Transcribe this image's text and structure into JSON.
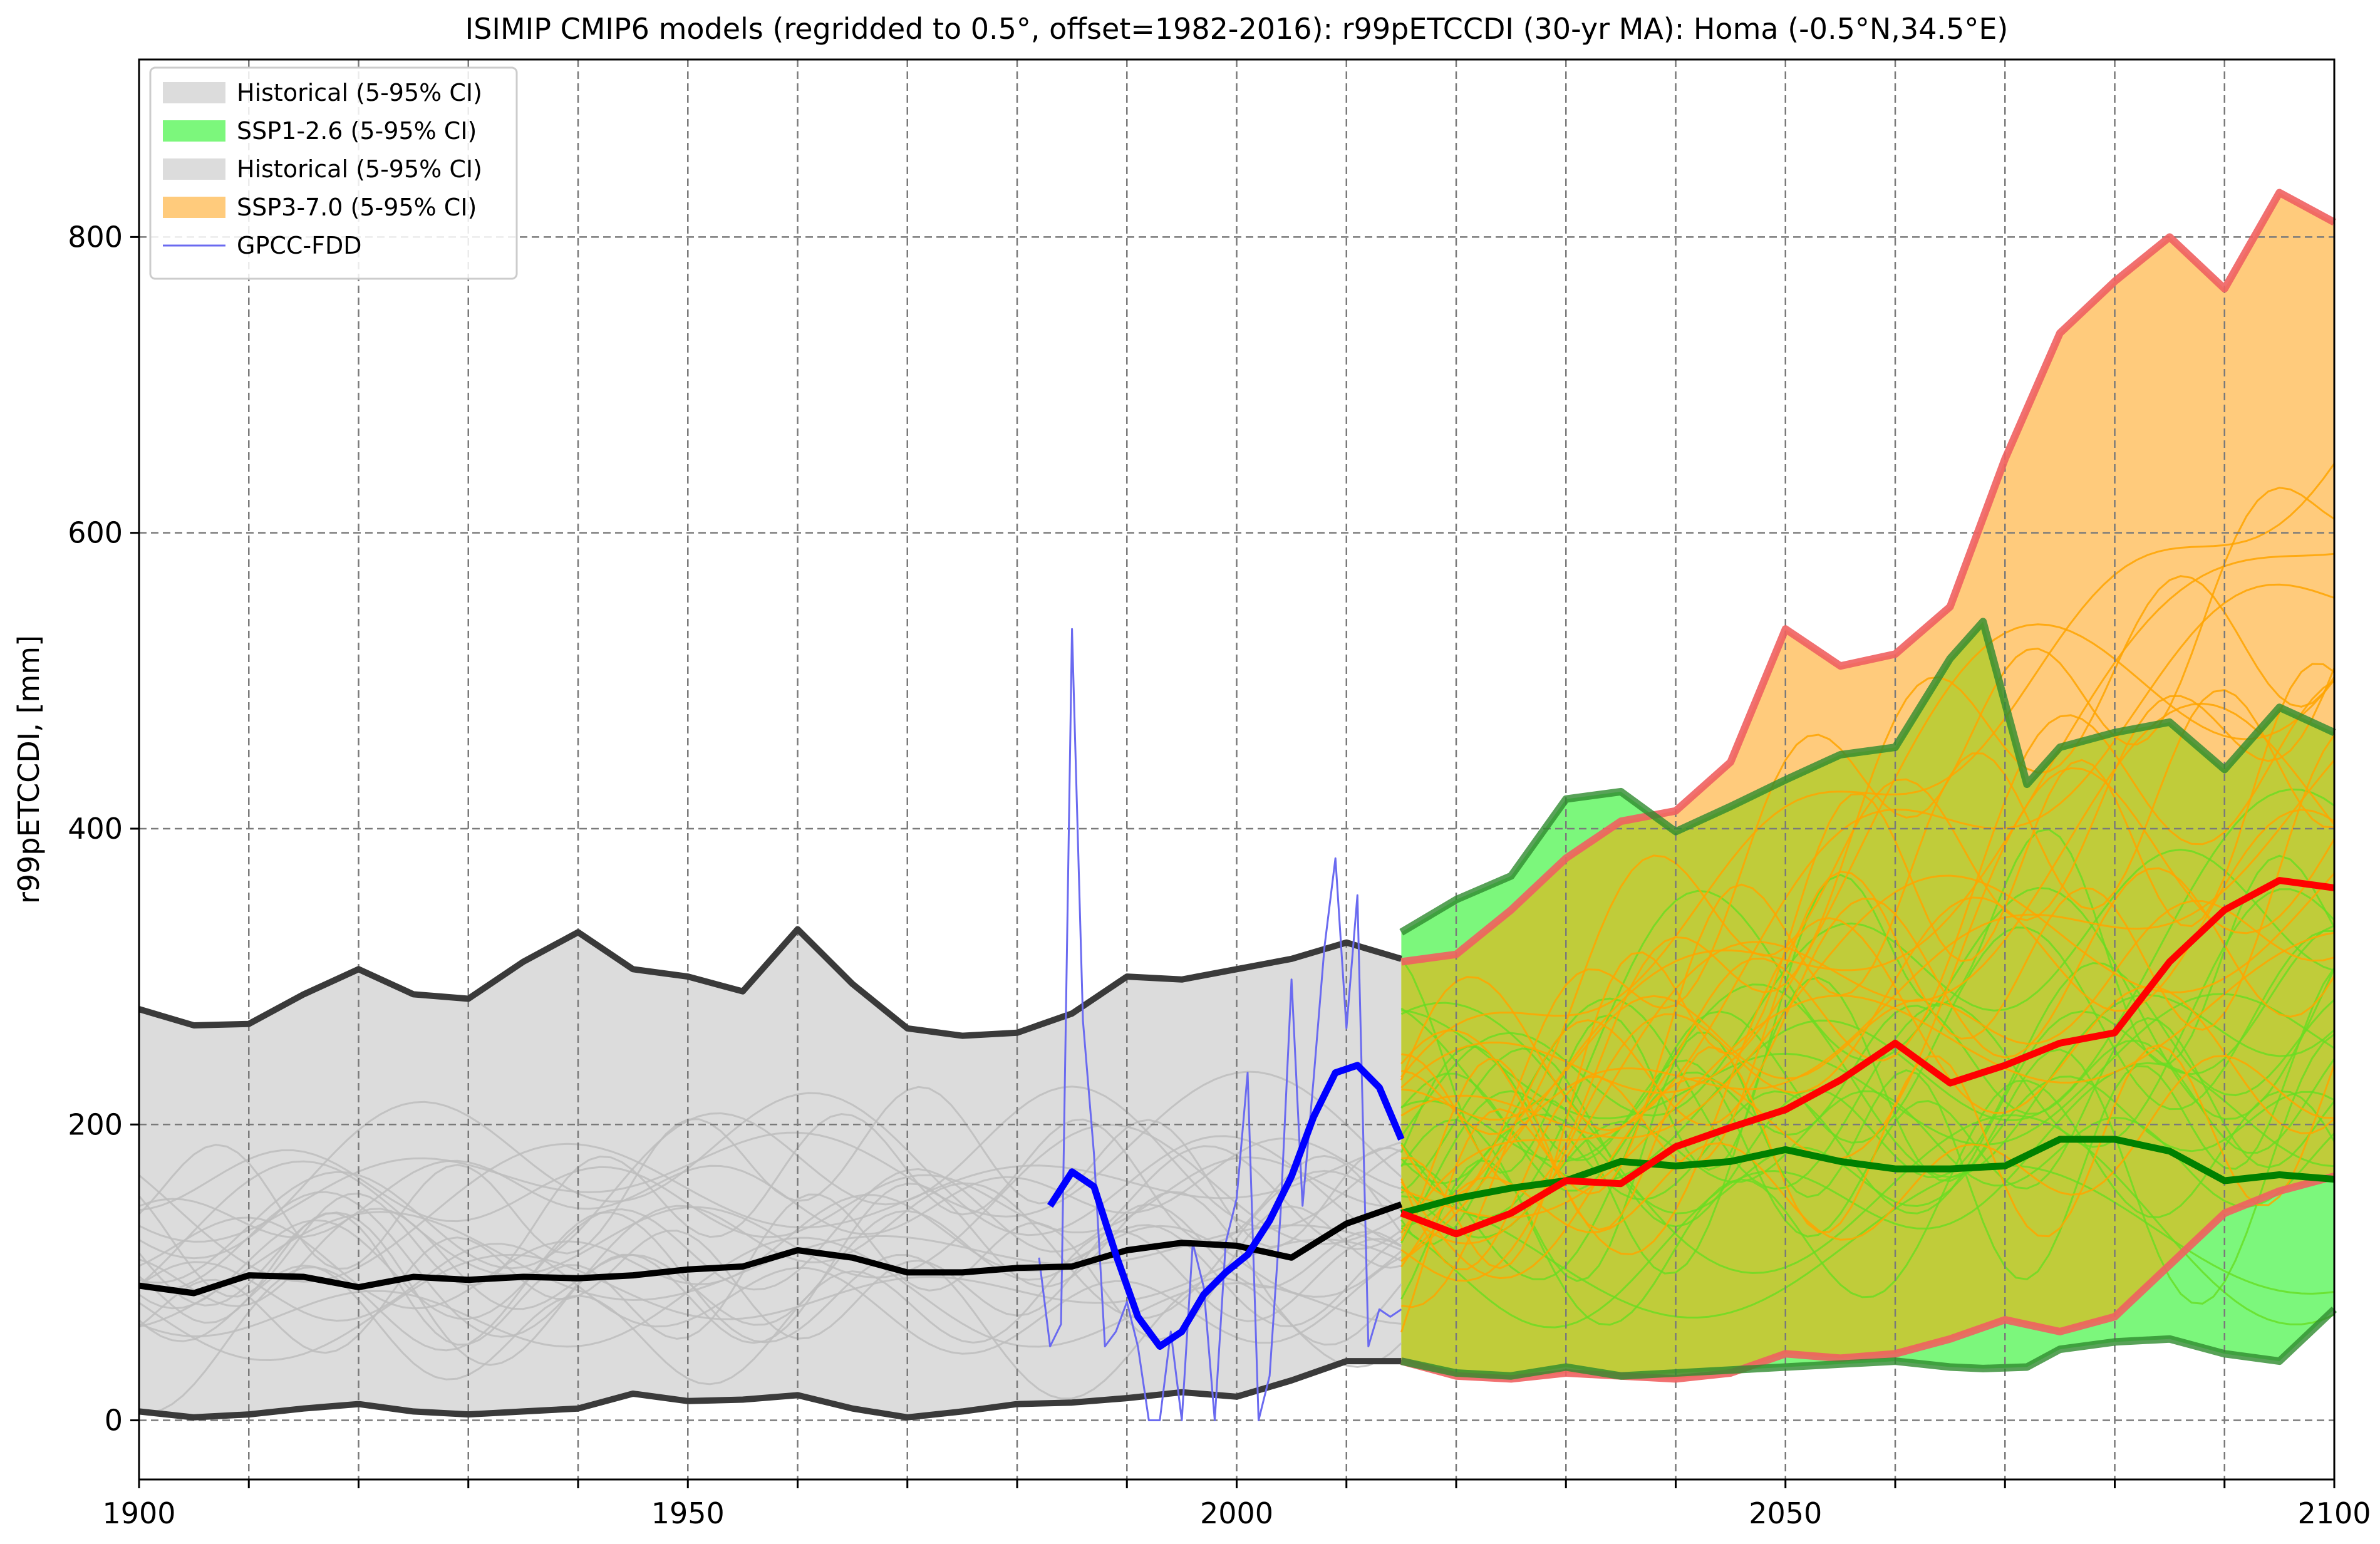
{
  "chart_data": {
    "type": "line",
    "title": "ISIMIP CMIP6 models (regridded to 0.5°, offset=1982-2016): r99pETCCDI (30-yr MA): Homa (-0.5°N,34.5°E)",
    "xlabel": "",
    "ylabel": "r99pETCCDI, [mm]",
    "xlim": [
      1900,
      2100
    ],
    "ylim": [
      -40,
      920
    ],
    "xticks": [
      1900,
      1950,
      2000,
      2050,
      2100
    ],
    "yticks": [
      0,
      200,
      400,
      600,
      800
    ],
    "grid": true,
    "legend_position": "top-left",
    "legend": [
      {
        "label": "Historical (5-95% CI)",
        "kind": "patch",
        "color": "#dcdcdc"
      },
      {
        "label": "SSP1-2.6 (5-95% CI)",
        "kind": "patch",
        "color": "#7cf77c"
      },
      {
        "label": "Historical (5-95% CI)",
        "kind": "patch",
        "color": "#dcdcdc"
      },
      {
        "label": "SSP3-7.0 (5-95% CI)",
        "kind": "patch",
        "color": "#ffcb7c"
      },
      {
        "label": "GPCC-FDD",
        "kind": "line",
        "color": "#6a6af0"
      }
    ],
    "colors": {
      "historical_band": "#dcdcdc",
      "historical_edge": "#3a3a3a",
      "historical_median": "#000000",
      "historical_members": "#bdbdbd",
      "ssp126_band": "#7cf77c",
      "ssp126_edge": "#2e8b2e",
      "ssp126_median": "#008000",
      "ssp126_members": "#66dd22",
      "ssp370_band": "#ffcb7c",
      "ssp370_edge": "#f06060",
      "ssp370_median": "#ff0000",
      "ssp370_members": "#ffa500",
      "overlap_band": "#c0cc3a",
      "gpcc": "#6a6af0",
      "gpcc_ma": "#0000ff"
    },
    "series": [
      {
        "name": "Historical (5-95% CI)",
        "role": "band",
        "x": [
          1900,
          1905,
          1910,
          1915,
          1920,
          1925,
          1930,
          1935,
          1940,
          1945,
          1950,
          1955,
          1960,
          1965,
          1970,
          1975,
          1980,
          1985,
          1990,
          1995,
          2000,
          2005,
          2010,
          2015
        ],
        "upper": [
          278,
          267,
          268,
          288,
          305,
          288,
          285,
          310,
          330,
          305,
          300,
          290,
          332,
          295,
          265,
          260,
          262,
          275,
          300,
          298,
          305,
          312,
          323,
          312
        ],
        "lower": [
          6,
          2,
          4,
          8,
          11,
          6,
          4,
          6,
          8,
          18,
          13,
          14,
          17,
          8,
          2,
          6,
          11,
          12,
          15,
          19,
          16,
          27,
          40,
          40
        ]
      },
      {
        "name": "Historical median",
        "role": "median",
        "x": [
          1900,
          1905,
          1910,
          1915,
          1920,
          1925,
          1930,
          1935,
          1940,
          1945,
          1950,
          1955,
          1960,
          1965,
          1970,
          1975,
          1980,
          1985,
          1990,
          1995,
          2000,
          2005,
          2010,
          2015
        ],
        "y": [
          91,
          86,
          98,
          97,
          90,
          97,
          95,
          97,
          96,
          98,
          102,
          104,
          115,
          110,
          100,
          100,
          103,
          104,
          115,
          120,
          118,
          110,
          133,
          146
        ]
      },
      {
        "name": "SSP1-2.6 (5-95% CI)",
        "role": "band",
        "x": [
          2015,
          2020,
          2025,
          2030,
          2035,
          2040,
          2045,
          2050,
          2055,
          2060,
          2065,
          2068,
          2072,
          2075,
          2080,
          2085,
          2090,
          2095,
          2100
        ],
        "upper": [
          330,
          352,
          368,
          420,
          425,
          398,
          415,
          433,
          450,
          455,
          515,
          540,
          430,
          455,
          465,
          472,
          440,
          482,
          465
        ],
        "lower": [
          40,
          32,
          30,
          36,
          30,
          32,
          34,
          36,
          38,
          40,
          36,
          35,
          36,
          48,
          53,
          55,
          45,
          40,
          75
        ]
      },
      {
        "name": "SSP1-2.6 median",
        "role": "median",
        "x": [
          2015,
          2020,
          2025,
          2030,
          2035,
          2040,
          2045,
          2050,
          2055,
          2060,
          2065,
          2070,
          2075,
          2080,
          2085,
          2090,
          2095,
          2100
        ],
        "y": [
          140,
          150,
          157,
          162,
          175,
          172,
          175,
          183,
          175,
          170,
          170,
          172,
          190,
          190,
          182,
          162,
          166,
          163
        ]
      },
      {
        "name": "SSP3-7.0 (5-95% CI)",
        "role": "band",
        "x": [
          2015,
          2020,
          2025,
          2030,
          2035,
          2040,
          2045,
          2050,
          2055,
          2060,
          2065,
          2070,
          2075,
          2080,
          2085,
          2090,
          2095,
          2100
        ],
        "upper": [
          310,
          315,
          345,
          380,
          405,
          412,
          445,
          535,
          510,
          518,
          550,
          650,
          735,
          770,
          800,
          765,
          830,
          810
        ],
        "lower": [
          40,
          30,
          28,
          32,
          30,
          28,
          32,
          45,
          42,
          45,
          55,
          68,
          60,
          70,
          105,
          140,
          155,
          165
        ]
      },
      {
        "name": "SSP3-7.0 median",
        "role": "median",
        "x": [
          2015,
          2020,
          2025,
          2030,
          2035,
          2040,
          2045,
          2050,
          2055,
          2060,
          2065,
          2070,
          2075,
          2080,
          2085,
          2090,
          2095,
          2100
        ],
        "y": [
          140,
          126,
          140,
          162,
          160,
          185,
          198,
          210,
          230,
          255,
          228,
          240,
          255,
          262,
          310,
          345,
          365,
          360
        ]
      },
      {
        "name": "GPCC-FDD",
        "role": "observed",
        "x": [
          1982,
          1983,
          1984,
          1985,
          1986,
          1987,
          1988,
          1989,
          1990,
          1991,
          1992,
          1993,
          1994,
          1995,
          1996,
          1997,
          1998,
          1999,
          2000,
          2001,
          2002,
          2003,
          2004,
          2005,
          2006,
          2007,
          2008,
          2009,
          2010,
          2011,
          2012,
          2013,
          2014,
          2015
        ],
        "y": [
          110,
          50,
          65,
          535,
          270,
          180,
          50,
          60,
          80,
          50,
          0,
          0,
          60,
          0,
          120,
          90,
          0,
          120,
          150,
          235,
          0,
          30,
          140,
          298,
          145,
          230,
          320,
          380,
          265,
          355,
          50,
          75,
          70,
          75
        ]
      },
      {
        "name": "GPCC-FDD (30-yr MA)",
        "role": "observed-ma",
        "x": [
          1983,
          1985,
          1987,
          1989,
          1991,
          1993,
          1995,
          1997,
          1999,
          2001,
          2003,
          2005,
          2007,
          2009,
          2011,
          2013,
          2015
        ],
        "y": [
          145,
          168,
          158,
          112,
          70,
          50,
          60,
          85,
          100,
          112,
          135,
          165,
          205,
          235,
          240,
          225,
          190
        ]
      }
    ]
  }
}
